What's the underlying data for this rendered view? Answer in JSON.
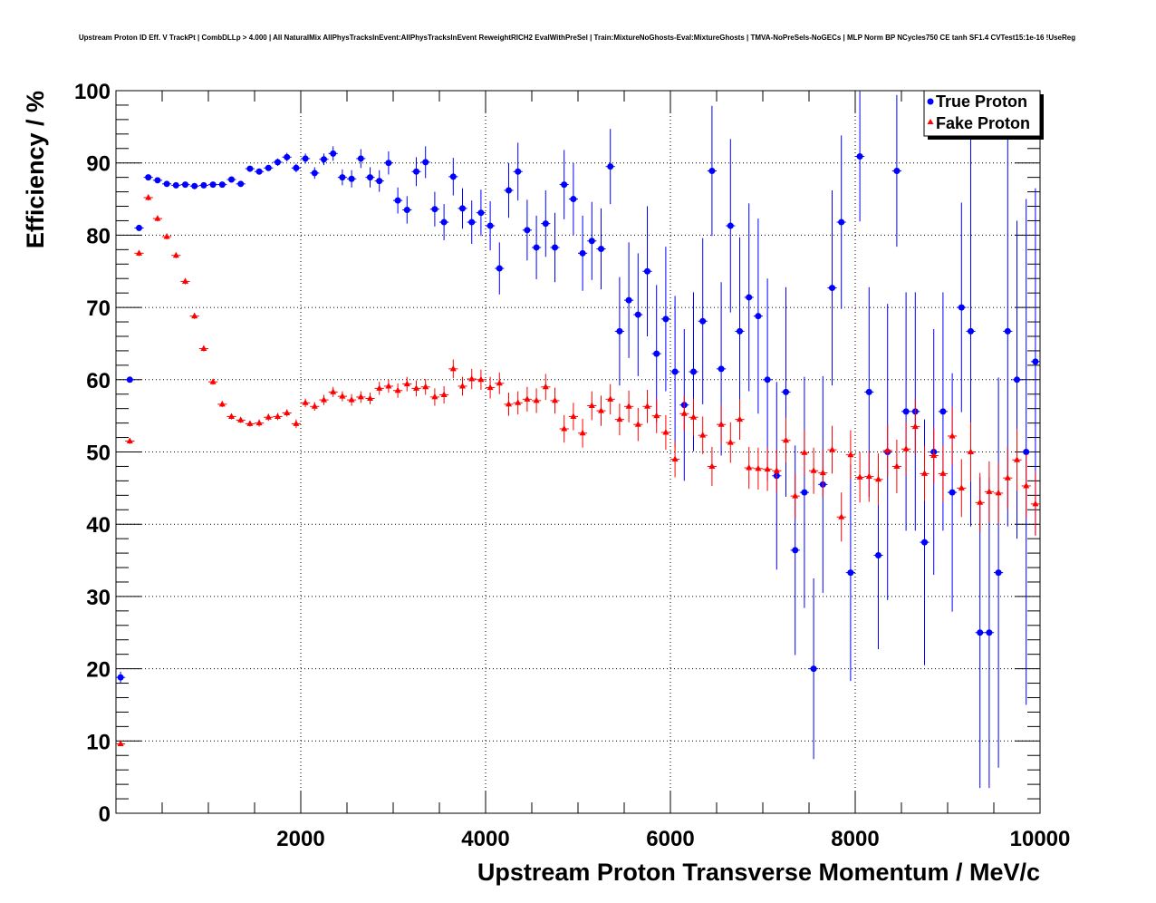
{
  "chart_data": {
    "type": "scatter",
    "title": "Upstream Proton ID Eff. V TrackPt | CombDLLp > 4.000 | All NaturalMix AllPhysTracksInEvent:AllPhysTracksInEvent ReweightRICH2 EvalWithPreSel | Train:MixtureNoGhosts-Eval:MixtureGhosts | TMVA-NoPreSels-NoGECs | MLP Norm BP NCycles750 CE tanh SF1.4 CVTest15:1e-16 !UseReg",
    "xlabel": "Upstream Proton Transverse Momentum / MeV/c",
    "ylabel": "Efficiency / %",
    "xlim": [
      0,
      10000
    ],
    "ylim": [
      0,
      100
    ],
    "x_ticks": [
      2000,
      4000,
      6000,
      8000,
      10000
    ],
    "y_ticks": [
      0,
      10,
      20,
      30,
      40,
      50,
      60,
      70,
      80,
      90,
      100
    ],
    "grid": true,
    "legend_position": "top-right",
    "series": [
      {
        "name": "True Proton",
        "color": "#0000ff",
        "marker": "circle",
        "x": [
          50,
          150,
          250,
          350,
          450,
          550,
          650,
          750,
          850,
          950,
          1050,
          1150,
          1250,
          1350,
          1450,
          1550,
          1650,
          1750,
          1850,
          1950,
          2050,
          2150,
          2250,
          2350,
          2450,
          2550,
          2650,
          2750,
          2850,
          2950,
          3050,
          3150,
          3250,
          3350,
          3450,
          3550,
          3650,
          3750,
          3850,
          3950,
          4050,
          4150,
          4250,
          4350,
          4450,
          4550,
          4650,
          4750,
          4850,
          4950,
          5050,
          5150,
          5250,
          5350,
          5450,
          5550,
          5650,
          5750,
          5850,
          5950,
          6050,
          6150,
          6250,
          6350,
          6450,
          6550,
          6650,
          6750,
          6850,
          6950,
          7050,
          7150,
          7250,
          7350,
          7450,
          7550,
          7650,
          7750,
          7850,
          7950,
          8050,
          8150,
          8250,
          8350,
          8450,
          8550,
          8650,
          8750,
          8850,
          8950,
          9050,
          9150,
          9250,
          9350,
          9450,
          9550,
          9650,
          9750,
          9850,
          9950
        ],
        "y": [
          18.8,
          60.0,
          81.0,
          88.0,
          87.6,
          87.1,
          86.9,
          87.0,
          86.8,
          86.9,
          87.0,
          87.0,
          87.7,
          87.1,
          89.2,
          88.8,
          89.3,
          90.1,
          90.8,
          89.3,
          90.6,
          88.6,
          90.5,
          91.3,
          88.0,
          87.8,
          90.6,
          88.0,
          87.5,
          90.0,
          84.8,
          83.5,
          88.8,
          90.1,
          83.6,
          81.8,
          88.1,
          83.7,
          81.8,
          83.1,
          81.3,
          75.4,
          86.2,
          88.8,
          80.7,
          78.3,
          81.6,
          78.3,
          87.0,
          85.0,
          77.5,
          79.2,
          78.1,
          89.5,
          66.7,
          71.0,
          69.0,
          75.0,
          63.6,
          68.4,
          61.1,
          56.5,
          61.1,
          68.1,
          88.9,
          61.5,
          81.3,
          66.7,
          71.4,
          68.8,
          60.0,
          46.7,
          58.3,
          36.4,
          44.4,
          20.0,
          45.5,
          72.7,
          81.8,
          33.3,
          90.9,
          58.3,
          35.7,
          50.0,
          88.9,
          55.6,
          55.6,
          37.5,
          50.0,
          55.6,
          44.4,
          70.0,
          66.7,
          25.0,
          25.0,
          33.3,
          66.7,
          60.0,
          50.0,
          62.5
        ],
        "y_err": [
          0.8,
          0.4,
          0.3,
          0.2,
          0.2,
          0.2,
          0.2,
          0.2,
          0.2,
          0.2,
          0.2,
          0.2,
          0.3,
          0.3,
          0.3,
          0.4,
          0.4,
          0.5,
          0.6,
          0.6,
          0.7,
          0.8,
          0.8,
          1.0,
          1.1,
          1.2,
          1.3,
          1.4,
          1.5,
          1.6,
          1.8,
          1.9,
          2.0,
          2.2,
          2.4,
          2.5,
          2.6,
          2.8,
          3.0,
          3.2,
          3.4,
          3.6,
          3.8,
          4.0,
          4.2,
          4.4,
          4.6,
          4.8,
          4.8,
          5.0,
          5.2,
          5.4,
          5.6,
          5.2,
          7.5,
          8.0,
          8.5,
          9.0,
          9.5,
          10.0,
          10.5,
          10.5,
          11.0,
          11.5,
          9.0,
          12.0,
          12.0,
          13.0,
          13.0,
          13.5,
          14.0,
          13.0,
          14.5,
          14.5,
          16.0,
          12.5,
          15.0,
          13.5,
          12.0,
          15.0,
          9.0,
          14.5,
          13.0,
          20.5,
          10.5,
          16.5,
          16.5,
          17.0,
          17.0,
          16.5,
          16.5,
          14.5,
          27.0,
          21.5,
          21.5,
          27.0,
          27.0,
          22.0,
          35.0,
          24.0
        ]
      },
      {
        "name": "Fake Proton",
        "color": "#ff0000",
        "marker": "triangle",
        "x": [
          50,
          150,
          250,
          350,
          450,
          550,
          650,
          750,
          850,
          950,
          1050,
          1150,
          1250,
          1350,
          1450,
          1550,
          1650,
          1750,
          1850,
          1950,
          2050,
          2150,
          2250,
          2350,
          2450,
          2550,
          2650,
          2750,
          2850,
          2950,
          3050,
          3150,
          3250,
          3350,
          3450,
          3550,
          3650,
          3750,
          3850,
          3950,
          4050,
          4150,
          4250,
          4350,
          4450,
          4550,
          4650,
          4750,
          4850,
          4950,
          5050,
          5150,
          5250,
          5350,
          5450,
          5550,
          5650,
          5750,
          5850,
          5950,
          6050,
          6150,
          6250,
          6350,
          6450,
          6550,
          6650,
          6750,
          6850,
          6950,
          7050,
          7150,
          7250,
          7350,
          7450,
          7550,
          7650,
          7750,
          7850,
          7950,
          8050,
          8150,
          8250,
          8350,
          8450,
          8550,
          8650,
          8750,
          8850,
          8950,
          9050,
          9150,
          9250,
          9350,
          9450,
          9550,
          9650,
          9750,
          9850,
          9950
        ],
        "y": [
          9.6,
          51.5,
          77.5,
          85.2,
          82.3,
          79.8,
          77.2,
          73.6,
          68.8,
          64.3,
          59.7,
          56.6,
          54.9,
          54.4,
          53.9,
          54.0,
          54.8,
          54.9,
          55.4,
          53.9,
          56.8,
          56.3,
          57.2,
          58.3,
          57.7,
          57.2,
          57.6,
          57.4,
          58.8,
          59.1,
          58.5,
          59.4,
          58.8,
          59.0,
          57.6,
          57.9,
          61.5,
          59.1,
          60.1,
          60.0,
          58.9,
          59.5,
          56.6,
          56.8,
          57.3,
          57.1,
          59.0,
          57.1,
          53.2,
          54.9,
          52.6,
          56.4,
          55.7,
          57.3,
          54.5,
          56.3,
          53.8,
          56.3,
          55.0,
          52.7,
          49.0,
          55.3,
          54.8,
          52.3,
          48.0,
          53.8,
          51.3,
          54.5,
          47.8,
          47.7,
          47.6,
          47.4,
          51.6,
          43.9,
          49.9,
          47.4,
          47.1,
          50.3,
          41.0,
          49.6,
          46.5,
          46.6,
          46.2,
          50.2,
          48.0,
          50.4,
          53.5,
          47.0,
          49.5,
          47.0,
          52.2,
          45.0,
          50.0,
          43.0,
          44.5,
          44.3,
          46.4,
          48.9,
          45.3,
          42.8
        ],
        "y_err": [
          0.3,
          0.4,
          0.4,
          0.4,
          0.4,
          0.4,
          0.4,
          0.4,
          0.4,
          0.4,
          0.4,
          0.4,
          0.4,
          0.4,
          0.4,
          0.5,
          0.5,
          0.5,
          0.5,
          0.6,
          0.6,
          0.6,
          0.7,
          0.7,
          0.7,
          0.8,
          0.8,
          0.8,
          0.9,
          0.9,
          1.0,
          1.0,
          1.1,
          1.1,
          1.2,
          1.2,
          1.3,
          1.3,
          1.4,
          1.4,
          1.5,
          1.5,
          1.6,
          1.6,
          1.7,
          1.7,
          1.8,
          1.8,
          1.9,
          1.9,
          2.0,
          2.0,
          2.1,
          2.1,
          2.2,
          2.2,
          2.3,
          2.3,
          2.4,
          2.4,
          2.5,
          2.5,
          2.6,
          2.6,
          2.7,
          2.7,
          2.8,
          2.8,
          2.9,
          2.9,
          3.0,
          3.0,
          3.1,
          3.1,
          3.2,
          3.2,
          3.3,
          3.3,
          3.4,
          3.4,
          3.5,
          3.5,
          3.6,
          3.6,
          3.7,
          3.7,
          3.8,
          3.8,
          3.9,
          3.9,
          4.0,
          4.0,
          4.1,
          4.1,
          4.2,
          4.2,
          4.3,
          4.3,
          4.4,
          4.4
        ]
      }
    ]
  }
}
